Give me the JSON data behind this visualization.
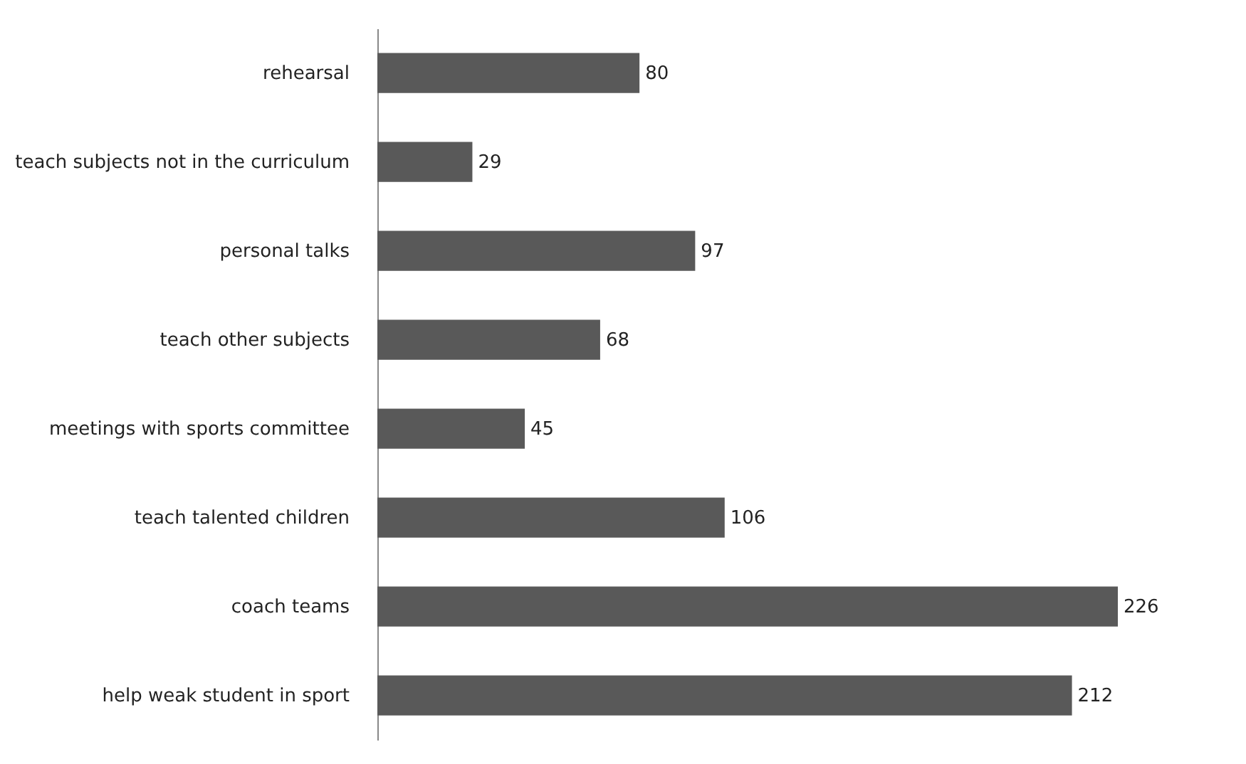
{
  "chart_data": {
    "type": "bar",
    "orientation": "horizontal",
    "data_labels": true,
    "categories": [
      "rehearsal",
      "teach subjects not in the curriculum",
      "personal talks",
      "teach other subjects",
      "meetings with sports committee",
      "teach talented children",
      "coach teams",
      "help weak student in sport"
    ],
    "values": [
      80,
      29,
      97,
      68,
      45,
      106,
      226,
      212
    ],
    "color": "#595959"
  }
}
